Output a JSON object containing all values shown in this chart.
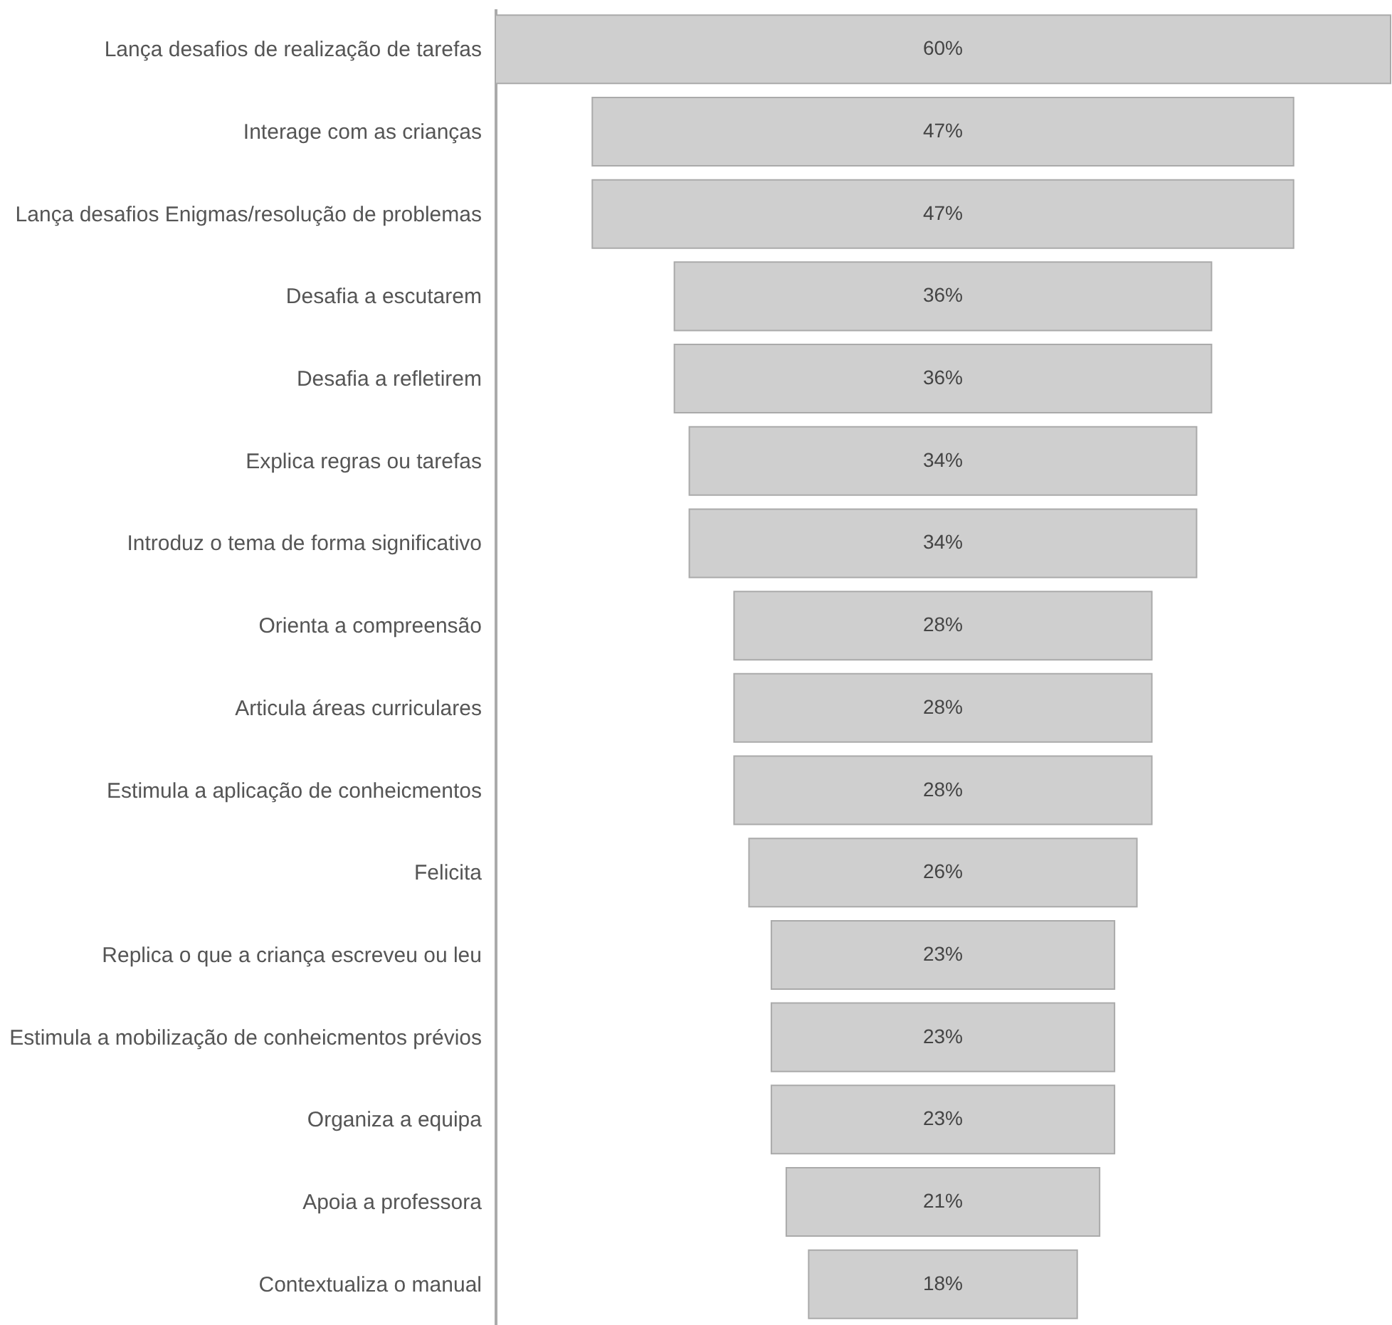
{
  "chart_data": {
    "type": "other",
    "categories": [
      "Lança desafios de realização de tarefas",
      "Interage com as crianças",
      "Lança desafios Enigmas/resolução de problemas",
      "Desafia a escutarem",
      "Desafia a refletirem",
      "Explica regras ou tarefas",
      "Introduz o tema de forma significativo",
      "Orienta a compreensão",
      "Articula áreas curriculares",
      "Estimula a aplicação de conheicmentos",
      "Felicita",
      "Replica o que a criança escreveu ou leu",
      "Estimula a mobilização de conheicmentos prévios",
      "Organiza a equipa",
      "Apoia a professora",
      "Contextualiza o manual"
    ],
    "values": [
      60,
      47,
      47,
      36,
      36,
      34,
      34,
      28,
      28,
      28,
      26,
      23,
      23,
      23,
      21,
      18
    ],
    "value_labels": [
      "60%",
      "47%",
      "47%",
      "36%",
      "36%",
      "34%",
      "34%",
      "28%",
      "28%",
      "28%",
      "26%",
      "23%",
      "23%",
      "23%",
      "21%",
      "18%"
    ],
    "color": "#cfcfcf"
  }
}
